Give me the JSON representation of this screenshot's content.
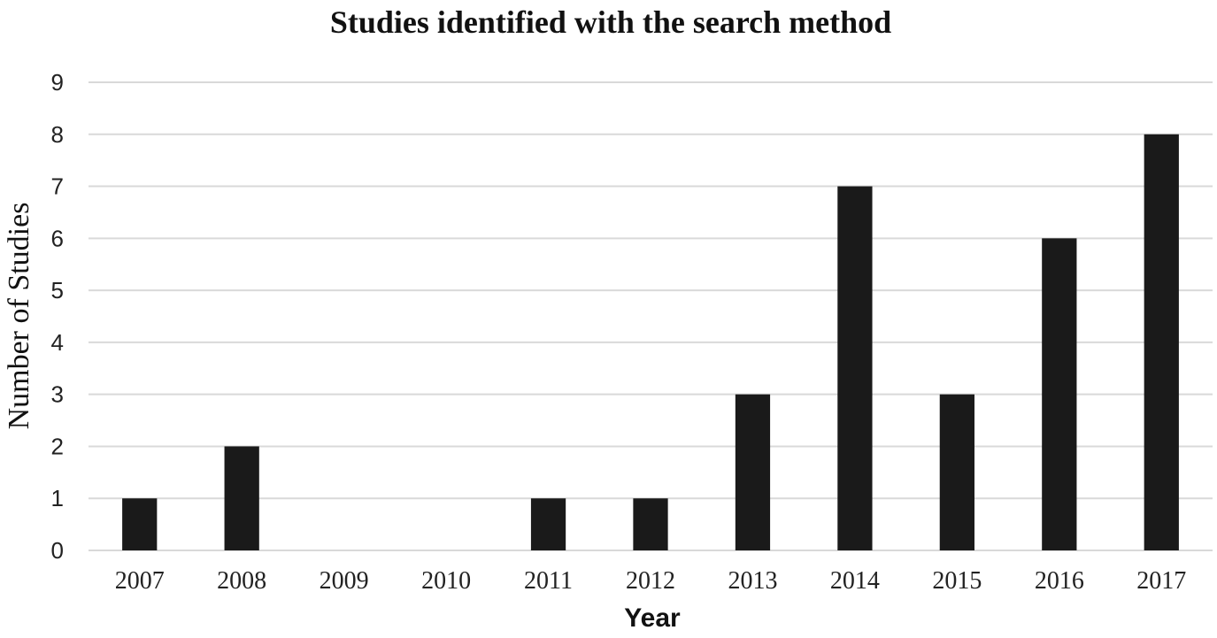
{
  "colors": {
    "bar": "#1a1a1a",
    "grid": "#d9d9d9",
    "background": "#ffffff"
  },
  "chart_data": {
    "type": "bar",
    "title": "Studies identified with the search method",
    "xlabel": "Year",
    "ylabel": "Number of Studies",
    "categories": [
      "2007",
      "2008",
      "2009",
      "2010",
      "2011",
      "2012",
      "2013",
      "2014",
      "2015",
      "2016",
      "2017"
    ],
    "values": [
      1,
      2,
      0,
      0,
      1,
      1,
      3,
      7,
      3,
      6,
      8
    ],
    "ylim": [
      0,
      9
    ],
    "yticks": [
      "0",
      "1",
      "2",
      "3",
      "4",
      "5",
      "6",
      "7",
      "8",
      "9"
    ],
    "grid": true,
    "legend": "none"
  }
}
